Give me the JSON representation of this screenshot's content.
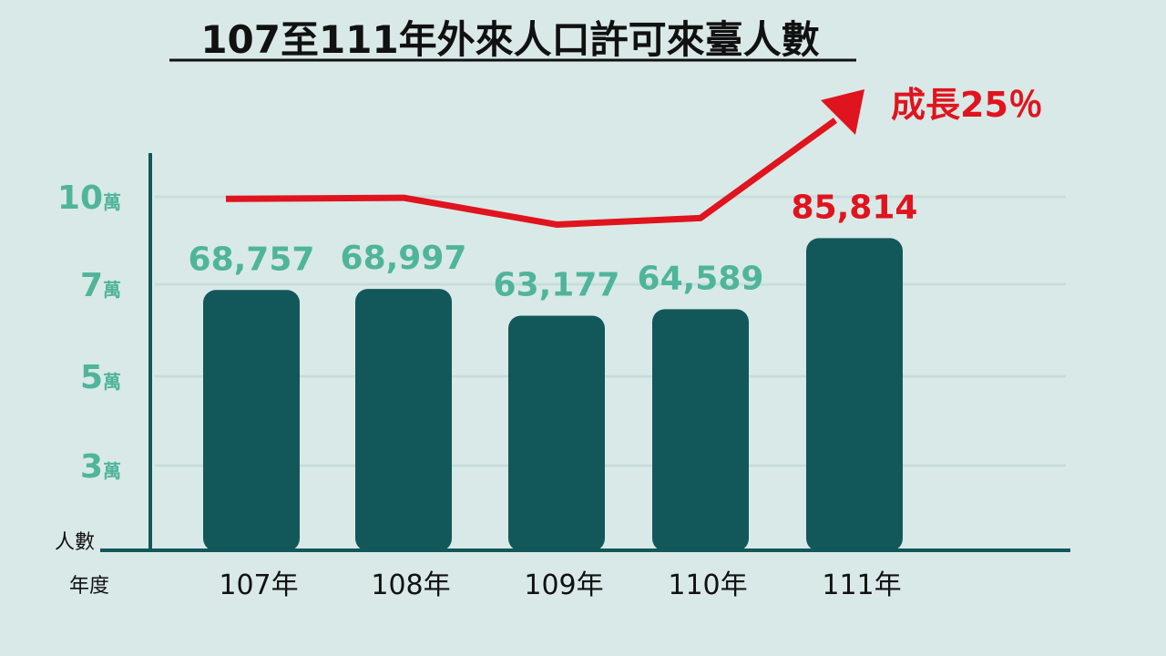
{
  "chart_data": {
    "type": "bar",
    "title": "107至111年外來人口許可來臺人數",
    "categories": [
      "107年",
      "108年",
      "109年",
      "110年",
      "111年"
    ],
    "values": [
      68757,
      68997,
      63177,
      64589,
      85814
    ],
    "value_labels": [
      "68,757",
      "68,997",
      "63,177",
      "64,589",
      "85,814"
    ],
    "ylabel": "人數",
    "xlabel": "年度",
    "yticks": [
      {
        "value": 30000,
        "num": "3",
        "unit": "萬"
      },
      {
        "value": 50000,
        "num": "5",
        "unit": "萬"
      },
      {
        "value": 70000,
        "num": "7",
        "unit": "萬"
      },
      {
        "value": 100000,
        "num": "10",
        "unit": "萬"
      }
    ],
    "grid": true,
    "annotation": "成長25％",
    "colors": {
      "bar": "#12585a",
      "label": "#4fb59a",
      "highlight": "#e0141e",
      "trend": "#e0141e",
      "background": "#d9e9e7",
      "grid": "#c6dedb"
    }
  }
}
